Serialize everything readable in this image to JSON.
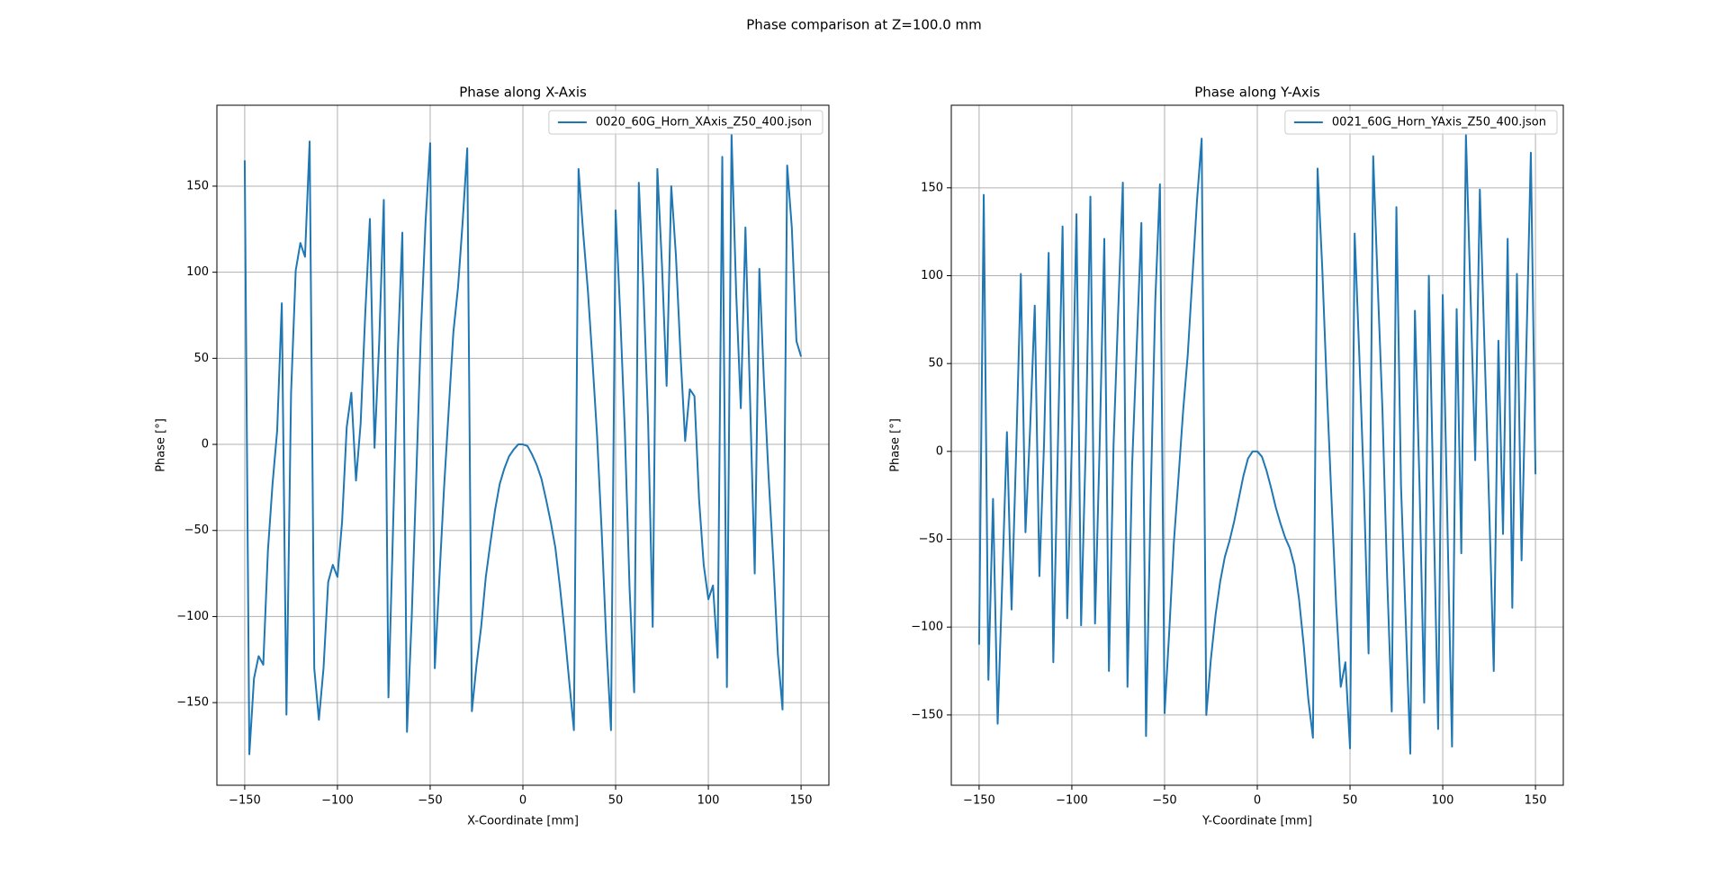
{
  "title": "Phase comparison at Z=100.0 mm",
  "chart_data": [
    {
      "type": "line",
      "title": "Phase along X-Axis",
      "x_label": "X-Coordinate [mm]",
      "y_label": "Phase [°]",
      "x": [
        -150,
        -147.5,
        -145,
        -142.5,
        -140,
        -137.5,
        -135,
        -132.5,
        -130,
        -127.5,
        -125,
        -122.5,
        -120,
        -117.5,
        -115,
        -112.5,
        -110,
        -107.5,
        -105,
        -102.5,
        -100,
        -97.5,
        -95,
        -92.5,
        -90,
        -87.5,
        -85,
        -82.5,
        -80,
        -77.5,
        -75,
        -72.5,
        -70,
        -67.5,
        -65,
        -62.5,
        -60,
        -57.5,
        -55,
        -52.5,
        -50,
        -47.5,
        -45,
        -42.5,
        -40,
        -37.5,
        -35,
        -32.5,
        -30,
        -27.5,
        -25,
        -22.5,
        -20,
        -17.5,
        -15,
        -12.5,
        -10,
        -7.5,
        -5,
        -2.5,
        0,
        2.5,
        5,
        7.5,
        10,
        12.5,
        15,
        17.5,
        20,
        22.5,
        25,
        27.5,
        30,
        32.5,
        35,
        37.5,
        40,
        42.5,
        45,
        47.5,
        50,
        52.5,
        55,
        57.5,
        60,
        62.5,
        65,
        67.5,
        70,
        72.5,
        75,
        77.5,
        80,
        82.5,
        85,
        87.5,
        90,
        92.5,
        95,
        97.5,
        100,
        102.5,
        105,
        107.5,
        110,
        112.5,
        115,
        117.5,
        120,
        122.5,
        125,
        127.5,
        130,
        132.5,
        135,
        137.5,
        140,
        142.5,
        145,
        147.5,
        150
      ],
      "series": [
        {
          "name": "0020_60G_Horn_XAxis_Z50_400.json",
          "color": "#1f77b4",
          "values": [
            165,
            -180,
            -136,
            -123,
            -128,
            -62,
            -23,
            8,
            82,
            -157,
            30,
            101,
            117,
            109,
            176,
            -130,
            -160,
            -130,
            -80,
            -70,
            -77,
            -45,
            10,
            30,
            -21,
            12,
            76,
            131,
            -2,
            59,
            142,
            -147,
            -48,
            52,
            123,
            -167,
            -102,
            -19,
            65,
            129,
            175,
            -130,
            -77,
            -25,
            20,
            65,
            91,
            129,
            172,
            -155,
            -128,
            -106,
            -77,
            -57,
            -38,
            -23,
            -14,
            -7,
            -3,
            0,
            0,
            -1,
            -6,
            -12,
            -20,
            -32,
            -45,
            -60,
            -83,
            -109,
            -138,
            -166,
            160,
            123,
            90,
            49,
            5,
            -51,
            -115,
            -166,
            136,
            75,
            7,
            -83,
            -144,
            152,
            91,
            14,
            -106,
            160,
            104,
            34,
            150,
            110,
            52,
            2,
            32,
            28,
            -32,
            -70,
            -90,
            -82,
            -124,
            167,
            -141,
            180,
            88,
            21,
            126,
            26,
            -75,
            102,
            36,
            -19,
            -67,
            -122,
            -154,
            162,
            126,
            60,
            51
          ]
        }
      ],
      "xlim": [
        -165,
        165
      ],
      "ylim": [
        -198,
        197
      ],
      "xticks": [
        {
          "value": -150,
          "label": "−150"
        },
        {
          "value": -100,
          "label": "−100"
        },
        {
          "value": -50,
          "label": "−50"
        },
        0,
        50,
        100,
        150
      ],
      "yticks": [
        {
          "value": -150,
          "label": "−150"
        },
        {
          "value": -100,
          "label": "−100"
        },
        {
          "value": -50,
          "label": "−50"
        },
        0,
        50,
        100,
        150
      ],
      "grid": true,
      "legend": "upper right"
    },
    {
      "type": "line",
      "title": "Phase along Y-Axis",
      "x_label": "Y-Coordinate [mm]",
      "y_label": "Phase [°]",
      "x": [
        -150,
        -147.5,
        -145,
        -142.5,
        -140,
        -137.5,
        -135,
        -132.5,
        -130,
        -127.5,
        -125,
        -122.5,
        -120,
        -117.5,
        -115,
        -112.5,
        -110,
        -107.5,
        -105,
        -102.5,
        -100,
        -97.5,
        -95,
        -92.5,
        -90,
        -87.5,
        -85,
        -82.5,
        -80,
        -77.5,
        -75,
        -72.5,
        -70,
        -67.5,
        -65,
        -62.5,
        -60,
        -57.5,
        -55,
        -52.5,
        -50,
        -47.5,
        -45,
        -42.5,
        -40,
        -37.5,
        -35,
        -32.5,
        -30,
        -27.5,
        -25,
        -22.5,
        -20,
        -17.5,
        -15,
        -12.5,
        -10,
        -7.5,
        -5,
        -2.5,
        0,
        2.5,
        5,
        7.5,
        10,
        12.5,
        15,
        17.5,
        20,
        22.5,
        25,
        27.5,
        30,
        32.5,
        35,
        37.5,
        40,
        42.5,
        45,
        47.5,
        50,
        52.5,
        55,
        57.5,
        60,
        62.5,
        65,
        67.5,
        70,
        72.5,
        75,
        77.5,
        80,
        82.5,
        85,
        87.5,
        90,
        92.5,
        95,
        97.5,
        100,
        102.5,
        105,
        107.5,
        110,
        112.5,
        115,
        117.5,
        120,
        122.5,
        125,
        127.5,
        130,
        132.5,
        135,
        137.5,
        140,
        142.5,
        145,
        147.5,
        150
      ],
      "series": [
        {
          "name": "0021_60G_Horn_YAxis_Z50_400.json",
          "color": "#1f77b4",
          "values": [
            -110,
            146,
            -130,
            -27,
            -155,
            -73,
            11,
            -90,
            1,
            101,
            -46,
            13,
            83,
            -71,
            4,
            113,
            -120,
            4,
            128,
            -95,
            4,
            135,
            -99,
            4,
            145,
            -98,
            4,
            121,
            -125,
            4,
            80,
            153,
            -134,
            -8,
            60,
            130,
            -162,
            -27,
            86,
            152,
            -149,
            -103,
            -52,
            -15,
            23,
            55,
            99,
            143,
            178,
            -150,
            -118,
            -93,
            -74,
            -60,
            -51,
            -40,
            -27,
            -14,
            -4,
            0,
            0,
            -3,
            -11,
            -21,
            -32,
            -41,
            -49,
            -55,
            -65,
            -84,
            -110,
            -141,
            -163,
            161,
            105,
            36,
            -27,
            -87,
            -134,
            -120,
            -169,
            124,
            55,
            -21,
            -115,
            168,
            93,
            23,
            -71,
            -148,
            139,
            -20,
            -95,
            -172,
            80,
            -20,
            -143,
            100,
            -30,
            -158,
            89,
            -40,
            -168,
            81,
            -58,
            180,
            88,
            -5,
            149,
            60,
            -30,
            -125,
            63,
            -47,
            121,
            -89,
            101,
            -62,
            55,
            170,
            -13
          ]
        }
      ],
      "xlim": [
        -165,
        165
      ],
      "ylim": [
        -190,
        197
      ],
      "xticks": [
        {
          "value": -150,
          "label": "−150"
        },
        {
          "value": -100,
          "label": "−100"
        },
        {
          "value": -50,
          "label": "−50"
        },
        0,
        50,
        100,
        150
      ],
      "yticks": [
        {
          "value": -150,
          "label": "−150"
        },
        {
          "value": -100,
          "label": "−100"
        },
        {
          "value": -50,
          "label": "−50"
        },
        0,
        50,
        100,
        150
      ],
      "grid": true,
      "legend": "upper right"
    }
  ]
}
